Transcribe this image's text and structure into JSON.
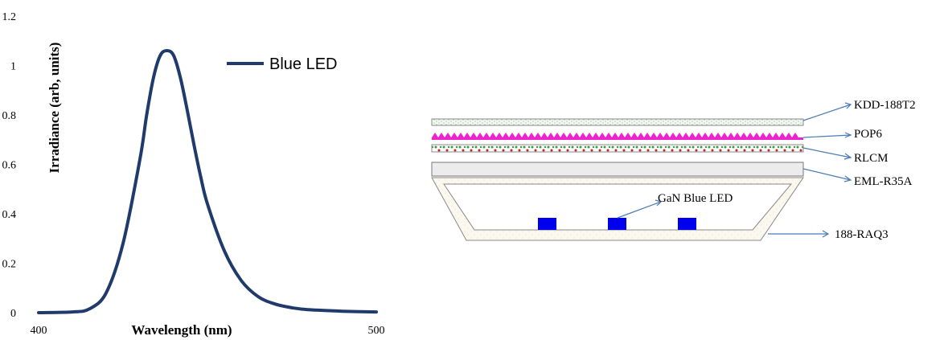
{
  "chart_data": {
    "type": "line",
    "title": "",
    "xlabel": "Wavelength (nm)",
    "ylabel": "Irradiance (arb, units)",
    "xlim": [
      400,
      500
    ],
    "ylim": [
      0,
      1.2
    ],
    "x_tick_labels": [
      "400",
      "500"
    ],
    "y_tick_labels": [
      "0",
      "0.2",
      "0.4",
      "0.6",
      "0.8",
      "1",
      "1.2"
    ],
    "grid": false,
    "legend_position": "top-right",
    "series": [
      {
        "name": "Blue LED",
        "color": "#1f3a6b",
        "x": [
          400,
          410,
          415,
          420,
          425,
          430,
          432,
          434,
          436,
          438,
          440,
          442,
          444,
          446,
          448,
          450,
          455,
          460,
          465,
          470,
          475,
          480,
          490,
          500
        ],
        "y": [
          0,
          0.003,
          0.015,
          0.08,
          0.28,
          0.62,
          0.8,
          0.95,
          1.04,
          1.06,
          1.04,
          0.95,
          0.82,
          0.68,
          0.55,
          0.44,
          0.25,
          0.13,
          0.065,
          0.035,
          0.02,
          0.012,
          0.006,
          0.003
        ]
      }
    ]
  },
  "diagram": {
    "layer_labels": [
      "KDD-188T2",
      "POP6",
      "RLCM",
      "EML-R35A"
    ],
    "led_label": "GaN Blue LED",
    "housing_label": "188-RAQ3",
    "colors": {
      "led": "#0000ee",
      "prism": "#ee22cc",
      "arrow": "#4a7ab5"
    }
  }
}
